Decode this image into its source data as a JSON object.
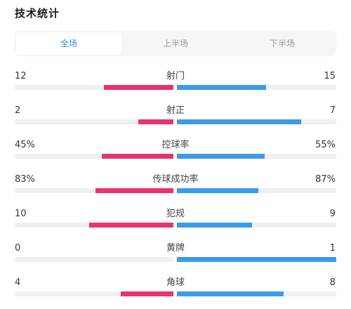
{
  "title": "技术统计",
  "tabs": [
    {
      "label": "全场",
      "active": true
    },
    {
      "label": "上半场",
      "active": false
    },
    {
      "label": "下半场",
      "active": false
    }
  ],
  "colors": {
    "home": "#e8336b",
    "away": "#3a9be8",
    "track": "#eef0f3",
    "tab_active": "#2d8cf0"
  },
  "stats": [
    {
      "name": "射门",
      "home": "12",
      "away": "15",
      "home_frac": 0.44,
      "away_frac": 0.56
    },
    {
      "name": "射正",
      "home": "2",
      "away": "7",
      "home_frac": 0.22,
      "away_frac": 0.78
    },
    {
      "name": "控球率",
      "home": "45%",
      "away": "55%",
      "home_frac": 0.45,
      "away_frac": 0.55
    },
    {
      "name": "传球成功率",
      "home": "83%",
      "away": "87%",
      "home_frac": 0.49,
      "away_frac": 0.51
    },
    {
      "name": "犯规",
      "home": "10",
      "away": "9",
      "home_frac": 0.53,
      "away_frac": 0.47
    },
    {
      "name": "黄牌",
      "home": "0",
      "away": "1",
      "home_frac": 0.0,
      "away_frac": 1.0
    },
    {
      "name": "角球",
      "home": "4",
      "away": "8",
      "home_frac": 0.33,
      "away_frac": 0.67
    }
  ]
}
